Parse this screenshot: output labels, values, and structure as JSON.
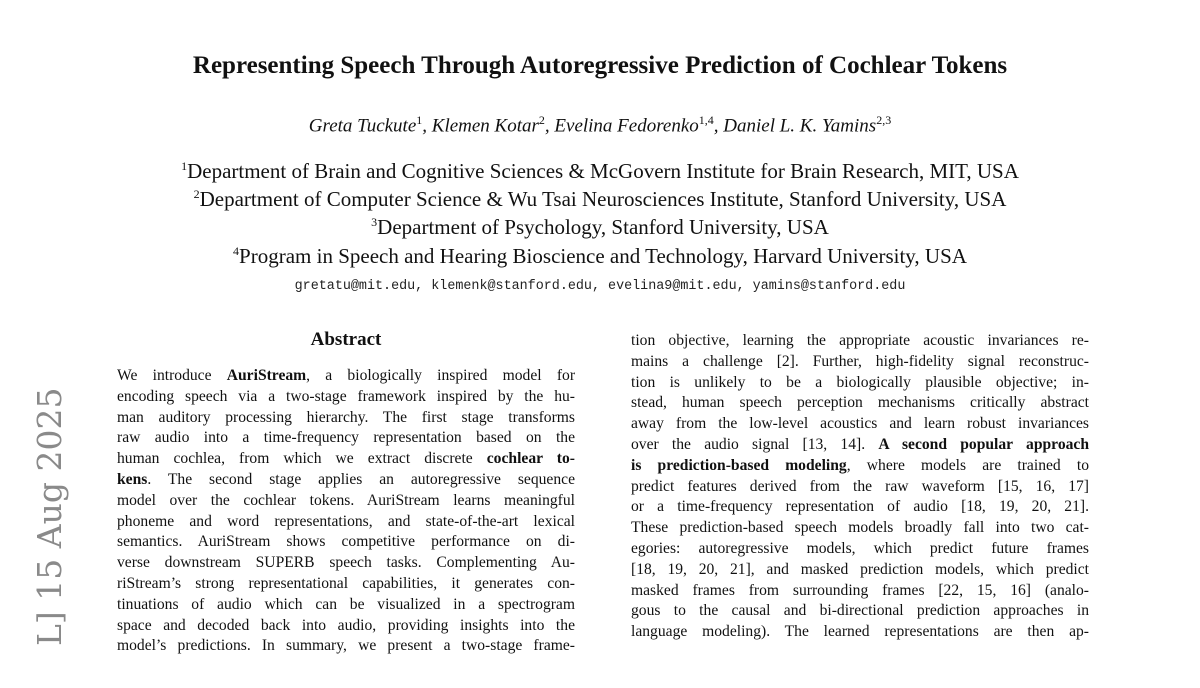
{
  "title": "Representing Speech Through Autoregressive Prediction of Cochlear Tokens",
  "authors": [
    {
      "name": "Greta Tuckute",
      "sup": "1"
    },
    {
      "name": "Klemen Kotar",
      "sup": "2"
    },
    {
      "name": "Evelina Fedorenko",
      "sup": "1,4"
    },
    {
      "name": "Daniel L. K. Yamins",
      "sup": "2,3"
    }
  ],
  "affiliations": [
    {
      "sup": "1",
      "text": "Department of Brain and Cognitive Sciences & McGovern Institute for Brain Research, MIT, USA"
    },
    {
      "sup": "2",
      "text": "Department of Computer Science & Wu Tsai Neurosciences Institute, Stanford University, USA"
    },
    {
      "sup": "3",
      "text": "Department of Psychology, Stanford University, USA"
    },
    {
      "sup": "4",
      "text": "Program in Speech and Hearing Bioscience and Technology, Harvard University, USA"
    }
  ],
  "emails": "gretatu@mit.edu, klemenk@stanford.edu, evelina9@mit.edu, yamins@stanford.edu",
  "abstract_heading": "Abstract",
  "arxiv_stamp": "L]  15 Aug 2025",
  "left_column": [
    [
      [
        "We introduce ",
        0
      ],
      [
        "AuriStream",
        1
      ],
      [
        ", a biologically inspired model for",
        0
      ]
    ],
    [
      [
        "encoding speech via a two-stage framework inspired by the hu-",
        0
      ]
    ],
    [
      [
        "man auditory processing hierarchy.  The first stage transforms",
        0
      ]
    ],
    [
      [
        "raw audio into a time-frequency representation based on the",
        0
      ]
    ],
    [
      [
        "human cochlea, from which we extract discrete ",
        0
      ],
      [
        "cochlear to-",
        1
      ]
    ],
    [
      [
        "kens",
        1
      ],
      [
        ".  The second stage applies an autoregressive sequence",
        0
      ]
    ],
    [
      [
        "model over the cochlear tokens. AuriStream learns meaningful",
        0
      ]
    ],
    [
      [
        "phoneme and word representations, and state-of-the-art lexical",
        0
      ]
    ],
    [
      [
        "semantics.  AuriStream shows competitive performance on di-",
        0
      ]
    ],
    [
      [
        "verse downstream SUPERB speech tasks. Complementing Au-",
        0
      ]
    ],
    [
      [
        "riStream’s strong representational capabilities, it generates con-",
        0
      ]
    ],
    [
      [
        "tinuations of audio which can be visualized in a spectrogram",
        0
      ]
    ],
    [
      [
        "space and decoded back into audio, providing insights into the",
        0
      ]
    ],
    [
      [
        "model’s predictions.  In summary, we present a two-stage frame-",
        0
      ]
    ]
  ],
  "right_column": [
    [
      [
        "tion objective, learning the appropriate acoustic invariances re-",
        0
      ]
    ],
    [
      [
        "mains a challenge [2].  Further, high-fidelity signal reconstruc-",
        0
      ]
    ],
    [
      [
        "tion is unlikely to be a biologically plausible objective; in-",
        0
      ]
    ],
    [
      [
        "stead, human speech perception mechanisms critically abstract",
        0
      ]
    ],
    [
      [
        "away from the low-level acoustics and learn robust invariances",
        0
      ]
    ],
    [
      [
        "over the audio signal [13, 14].  ",
        0
      ],
      [
        "A second popular approach",
        1
      ]
    ],
    [
      [
        "is prediction-based modeling",
        1
      ],
      [
        ", where models are trained to",
        0
      ]
    ],
    [
      [
        "predict features derived from the raw waveform [15, 16, 17]",
        0
      ]
    ],
    [
      [
        "or a time-frequency representation of audio [18, 19, 20, 21].",
        0
      ]
    ],
    [
      [
        "These prediction-based speech models broadly fall into two cat-",
        0
      ]
    ],
    [
      [
        "egories:  autoregressive models, which predict future frames",
        0
      ]
    ],
    [
      [
        "[18, 19, 20, 21], and masked prediction models, which predict",
        0
      ]
    ],
    [
      [
        "masked frames from surrounding frames [22, 15, 16] (analo-",
        0
      ]
    ],
    [
      [
        "gous to the causal and bi-directional prediction approaches in",
        0
      ]
    ],
    [
      [
        "language modeling).  The learned representations are then ap-",
        0
      ]
    ]
  ]
}
